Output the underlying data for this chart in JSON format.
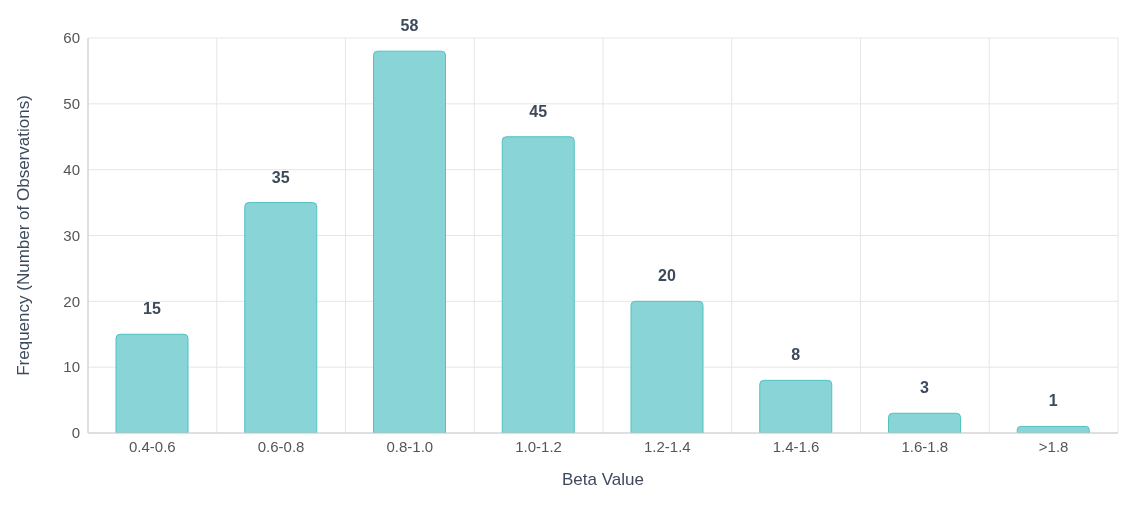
{
  "chart_data": {
    "type": "bar",
    "xlabel": "Beta Value",
    "ylabel": "Frequency (Number of Observations)",
    "categories": [
      "0.4-0.6",
      "0.6-0.8",
      "0.8-1.0",
      "1.0-1.2",
      "1.2-1.4",
      "1.4-1.6",
      "1.6-1.8",
      ">1.8"
    ],
    "values": [
      15,
      35,
      58,
      45,
      20,
      8,
      3,
      1
    ],
    "color": "#88d4d6",
    "ylim": [
      0,
      60
    ],
    "yticks": [
      0,
      10,
      20,
      30,
      40,
      50,
      60
    ],
    "grid": true,
    "data_labels": true,
    "legend": false
  }
}
